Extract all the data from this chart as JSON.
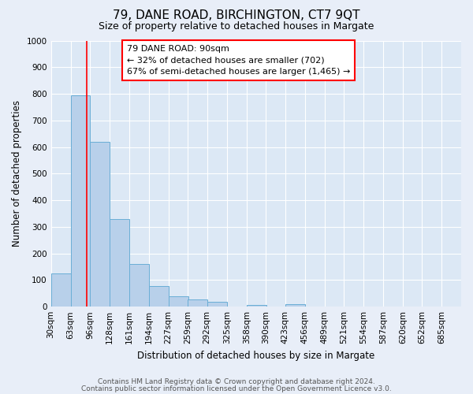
{
  "title": "79, DANE ROAD, BIRCHINGTON, CT7 9QT",
  "subtitle": "Size of property relative to detached houses in Margate",
  "xlabel": "Distribution of detached houses by size in Margate",
  "ylabel": "Number of detached properties",
  "bin_labels": [
    "30sqm",
    "63sqm",
    "96sqm",
    "128sqm",
    "161sqm",
    "194sqm",
    "227sqm",
    "259sqm",
    "292sqm",
    "325sqm",
    "358sqm",
    "390sqm",
    "423sqm",
    "456sqm",
    "489sqm",
    "521sqm",
    "554sqm",
    "587sqm",
    "620sqm",
    "652sqm",
    "685sqm"
  ],
  "bin_lefts": [
    30,
    63,
    96,
    128,
    161,
    194,
    227,
    259,
    292,
    325,
    358,
    390,
    423,
    456,
    489,
    521,
    554,
    587,
    620,
    652,
    685
  ],
  "bin_width": 33,
  "bar_heights": [
    125,
    795,
    620,
    328,
    160,
    78,
    40,
    28,
    18,
    0,
    5,
    0,
    8,
    0,
    0,
    0,
    0,
    0,
    0,
    0,
    0
  ],
  "bar_color": "#b8d0ea",
  "bar_edgecolor": "#6aaed6",
  "redline_x": 90,
  "ylim": [
    0,
    1000
  ],
  "yticks": [
    0,
    100,
    200,
    300,
    400,
    500,
    600,
    700,
    800,
    900,
    1000
  ],
  "xlim_left": 30,
  "xlim_right": 718,
  "annotation_text_line1": "79 DANE ROAD: 90sqm",
  "annotation_text_line2": "← 32% of detached houses are smaller (702)",
  "annotation_text_line3": "67% of semi-detached houses are larger (1,465) →",
  "footer_line1": "Contains HM Land Registry data © Crown copyright and database right 2024.",
  "footer_line2": "Contains public sector information licensed under the Open Government Licence v3.0.",
  "bg_color": "#e8eef8",
  "plot_bg_color": "#dce8f5",
  "grid_color": "#ffffff",
  "title_fontsize": 11,
  "subtitle_fontsize": 9,
  "xlabel_fontsize": 8.5,
  "ylabel_fontsize": 8.5,
  "tick_fontsize": 7.5,
  "footer_fontsize": 6.5,
  "ann_fontsize": 8
}
